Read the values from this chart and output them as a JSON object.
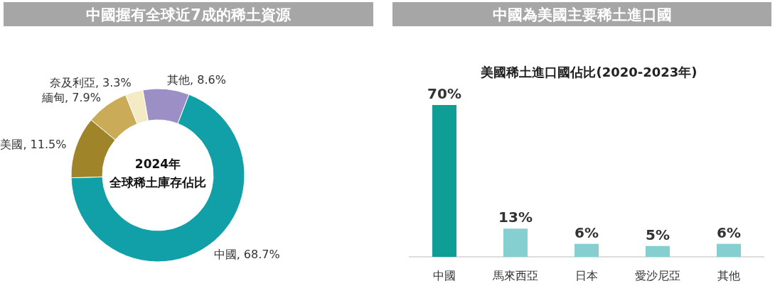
{
  "chart_data": [
    {
      "type": "donut",
      "title": "中國握有全球近7成的稀土資源",
      "categories": [
        "中國",
        "美國",
        "緬甸",
        "奈及利亞",
        "其他"
      ],
      "values": [
        68.7,
        11.5,
        7.9,
        3.3,
        8.6
      ],
      "value_labels": [
        "68.7%",
        "11.5%",
        "7.9%",
        "3.3%",
        "8.6%"
      ],
      "colors": [
        "#12a0a8",
        "#a0842a",
        "#c9ab58",
        "#f4eac3",
        "#9b8fc6"
      ],
      "annotations": [
        "2024年",
        "全球稀土庫存佔比"
      ]
    },
    {
      "type": "bar",
      "title": "中國為美國主要稀土進口國",
      "subtitle": "美國稀土進口國佔比(2020-2023年)",
      "categories": [
        "中國",
        "馬來西亞",
        "日本",
        "愛沙尼亞",
        "其他"
      ],
      "values": [
        70,
        13,
        6,
        5,
        6
      ],
      "value_labels": [
        "70%",
        "13%",
        "6%",
        "5%",
        "6%"
      ],
      "colors": [
        "#0f9e96",
        "#86cfd0",
        "#86cfd0",
        "#86cfd0",
        "#86cfd0"
      ]
    }
  ]
}
